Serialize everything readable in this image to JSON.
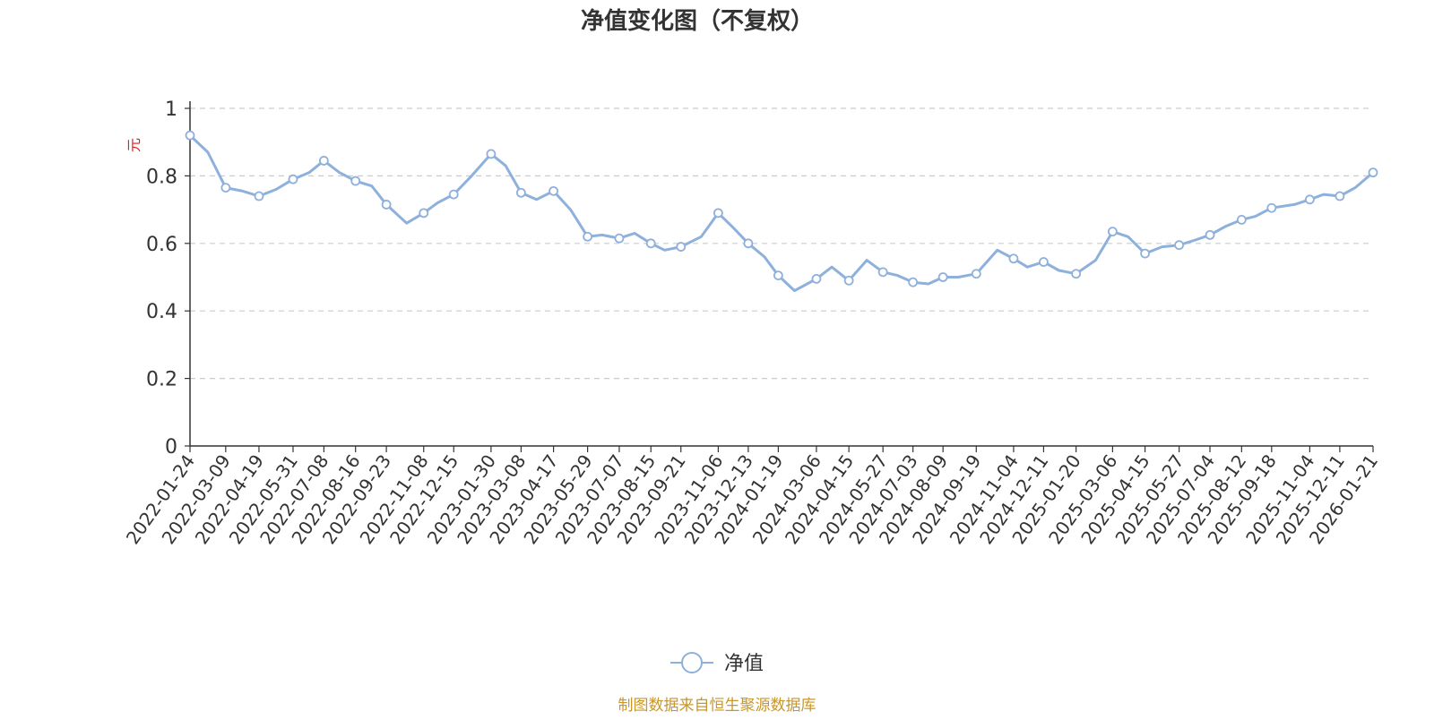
{
  "chart_data": {
    "type": "line",
    "title": "净值变化图（不复权）",
    "ylabel": "元",
    "ylim": [
      0,
      1
    ],
    "y_ticks": [
      0,
      0.2,
      0.4,
      0.6,
      0.8,
      1
    ],
    "y_tick_labels": [
      "0",
      "0.2",
      "0.4",
      "0.6",
      "0.8",
      "1"
    ],
    "grid": true,
    "legend_position": "bottom-center",
    "x_tick_labels": [
      "2022-01-24",
      "2022-03-09",
      "2022-04-19",
      "2022-05-31",
      "2022-07-08",
      "2022-08-16",
      "2022-09-23",
      "2022-11-08",
      "2022-12-15",
      "2023-01-30",
      "2023-03-08",
      "2023-04-17",
      "2023-05-29",
      "2023-07-07",
      "2023-08-15",
      "2023-09-21",
      "2023-11-06",
      "2023-12-13",
      "2024-01-19",
      "2024-03-06",
      "2024-04-15",
      "2024-05-27",
      "2024-07-03",
      "2024-08-09",
      "2024-09-19",
      "2024-11-04",
      "2024-12-11",
      "2025-01-20",
      "2025-03-06",
      "2025-04-15",
      "2025-05-27",
      "2025-07-04",
      "2025-08-12",
      "2025-09-18",
      "2025-11-04",
      "2025-12-11",
      "2026-01-21"
    ],
    "series": [
      {
        "name": "净值",
        "color": "#8eb0dc",
        "x": [
          "2022-01-24",
          "2022-02-15",
          "2022-03-09",
          "2022-03-30",
          "2022-04-19",
          "2022-05-10",
          "2022-05-31",
          "2022-06-20",
          "2022-07-08",
          "2022-07-27",
          "2022-08-16",
          "2022-09-05",
          "2022-09-23",
          "2022-10-18",
          "2022-11-08",
          "2022-11-25",
          "2022-12-15",
          "2023-01-06",
          "2023-01-30",
          "2023-02-17",
          "2023-03-08",
          "2023-03-27",
          "2023-04-17",
          "2023-05-08",
          "2023-05-29",
          "2023-06-16",
          "2023-07-07",
          "2023-07-26",
          "2023-08-15",
          "2023-09-01",
          "2023-09-21",
          "2023-10-16",
          "2023-11-06",
          "2023-11-23",
          "2023-12-13",
          "2024-01-02",
          "2024-01-19",
          "2024-02-08",
          "2024-03-06",
          "2024-03-25",
          "2024-04-15",
          "2024-05-07",
          "2024-05-27",
          "2024-06-14",
          "2024-07-03",
          "2024-07-22",
          "2024-08-09",
          "2024-08-28",
          "2024-09-19",
          "2024-10-15",
          "2024-11-04",
          "2024-11-21",
          "2024-12-11",
          "2024-12-30",
          "2025-01-20",
          "2025-02-13",
          "2025-03-06",
          "2025-03-25",
          "2025-04-15",
          "2025-05-06",
          "2025-05-27",
          "2025-06-16",
          "2025-07-04",
          "2025-07-23",
          "2025-08-12",
          "2025-08-29",
          "2025-09-18",
          "2025-10-16",
          "2025-11-04",
          "2025-11-21",
          "2025-12-11",
          "2025-12-30",
          "2026-01-21"
        ],
        "values": [
          0.92,
          0.87,
          0.765,
          0.755,
          0.74,
          0.76,
          0.79,
          0.81,
          0.845,
          0.81,
          0.785,
          0.77,
          0.715,
          0.66,
          0.69,
          0.72,
          0.745,
          0.8,
          0.865,
          0.83,
          0.75,
          0.73,
          0.755,
          0.7,
          0.62,
          0.625,
          0.615,
          0.63,
          0.6,
          0.58,
          0.59,
          0.62,
          0.69,
          0.65,
          0.6,
          0.56,
          0.505,
          0.46,
          0.495,
          0.53,
          0.49,
          0.55,
          0.515,
          0.505,
          0.485,
          0.48,
          0.5,
          0.5,
          0.51,
          0.58,
          0.555,
          0.53,
          0.545,
          0.52,
          0.51,
          0.55,
          0.635,
          0.62,
          0.57,
          0.59,
          0.595,
          0.61,
          0.625,
          0.65,
          0.67,
          0.68,
          0.705,
          0.715,
          0.73,
          0.745,
          0.74,
          0.765,
          0.81
        ],
        "marker_indices": [
          0,
          2,
          4,
          6,
          8,
          10,
          12,
          14,
          16,
          18,
          20,
          22,
          24,
          26,
          28,
          30,
          32,
          34,
          36,
          38,
          40,
          42,
          44,
          46,
          48,
          50,
          52,
          54,
          56,
          58,
          60,
          62,
          64,
          66,
          68,
          70,
          72
        ]
      }
    ]
  },
  "footer": {
    "source_note": "制图数据来自恒生聚源数据库"
  }
}
